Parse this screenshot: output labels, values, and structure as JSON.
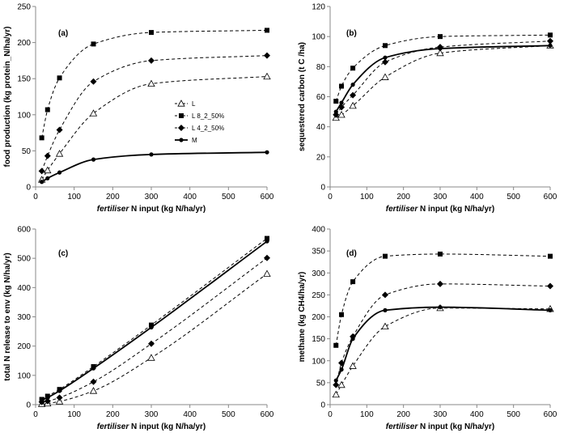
{
  "chart_data": [
    {
      "type": "line",
      "panel_label": "(a)",
      "xlabel_prefix": "fertiliser",
      "xlabel_rest": " N input (kg N/ha/yr)",
      "ylabel": "food production (kg protein_N/ha/yr)",
      "xlim": [
        0,
        600
      ],
      "ylim": [
        0,
        250
      ],
      "xticks": [
        0,
        100,
        200,
        300,
        400,
        500,
        600
      ],
      "yticks": [
        0,
        50,
        100,
        150,
        200,
        250
      ],
      "legend": {
        "position": "center-left",
        "entries": [
          "L",
          "L 8_2_50%",
          "L 4_2_50%",
          "M"
        ]
      },
      "series": [
        {
          "name": "L",
          "marker": "triangle-open",
          "line": "dashed",
          "x": [
            16,
            31,
            62,
            150,
            300,
            600
          ],
          "y": [
            10,
            23,
            46,
            102,
            143,
            153
          ]
        },
        {
          "name": "L 8_2_50%",
          "marker": "square",
          "line": "dashed",
          "x": [
            16,
            31,
            62,
            150,
            300,
            600
          ],
          "y": [
            68,
            107,
            151,
            198,
            214,
            217
          ]
        },
        {
          "name": "L 4_2_50%",
          "marker": "diamond",
          "line": "dashed",
          "x": [
            16,
            31,
            62,
            150,
            300,
            600
          ],
          "y": [
            22,
            43,
            79,
            146,
            175,
            182
          ]
        },
        {
          "name": "M",
          "marker": "circle",
          "line": "solid",
          "x": [
            16,
            31,
            62,
            150,
            300,
            600
          ],
          "y": [
            7,
            12,
            20,
            38,
            45,
            48
          ]
        }
      ]
    },
    {
      "type": "line",
      "panel_label": "(b)",
      "xlabel_prefix": "fertiliser",
      "xlabel_rest": " N input (kg N/ha/yr)",
      "ylabel": "sequestered carbon (t C /ha)",
      "xlim": [
        0,
        600
      ],
      "ylim": [
        0,
        120
      ],
      "xticks": [
        0,
        100,
        200,
        300,
        400,
        500,
        600
      ],
      "yticks": [
        0,
        20,
        40,
        60,
        80,
        100,
        120
      ],
      "series": [
        {
          "name": "L",
          "marker": "triangle-open",
          "line": "dashed",
          "x": [
            16,
            31,
            62,
            150,
            300,
            600
          ],
          "y": [
            46,
            48,
            54,
            73,
            89,
            94
          ]
        },
        {
          "name": "L 8_2_50%",
          "marker": "square",
          "line": "dashed",
          "x": [
            16,
            31,
            62,
            150,
            300,
            600
          ],
          "y": [
            57,
            67,
            79,
            94,
            100,
            101
          ]
        },
        {
          "name": "L 4_2_50%",
          "marker": "diamond",
          "line": "dashed",
          "x": [
            16,
            31,
            62,
            150,
            300,
            600
          ],
          "y": [
            48,
            53,
            61,
            83,
            93,
            97
          ]
        },
        {
          "name": "M",
          "marker": "circle",
          "line": "solid",
          "x": [
            16,
            31,
            62,
            150,
            300,
            600
          ],
          "y": [
            50,
            56,
            68,
            86,
            92,
            94
          ]
        }
      ]
    },
    {
      "type": "line",
      "panel_label": "(c)",
      "xlabel_prefix": "fertiliser",
      "xlabel_rest": " N input (kg N/ha/yr)",
      "ylabel": "total N release to env (kg N/ha/yr)",
      "xlim": [
        0,
        600
      ],
      "ylim": [
        0,
        600
      ],
      "xticks": [
        0,
        100,
        200,
        300,
        400,
        500,
        600
      ],
      "yticks": [
        0,
        100,
        200,
        300,
        400,
        500,
        600
      ],
      "series": [
        {
          "name": "L",
          "marker": "triangle-open",
          "line": "dashed",
          "x": [
            16,
            31,
            62,
            150,
            300,
            600
          ],
          "y": [
            2,
            4,
            11,
            47,
            160,
            447
          ]
        },
        {
          "name": "L 8_2_50%",
          "marker": "square",
          "line": "dashed",
          "x": [
            16,
            31,
            62,
            150,
            300,
            600
          ],
          "y": [
            18,
            29,
            52,
            130,
            272,
            568
          ]
        },
        {
          "name": "L 4_2_50%",
          "marker": "diamond",
          "line": "dashed",
          "x": [
            16,
            31,
            62,
            150,
            300,
            600
          ],
          "y": [
            9,
            12,
            24,
            78,
            208,
            501
          ]
        },
        {
          "name": "M",
          "marker": "circle",
          "line": "solid",
          "x": [
            16,
            31,
            62,
            150,
            300,
            600
          ],
          "y": [
            15,
            24,
            47,
            124,
            264,
            558
          ]
        }
      ]
    },
    {
      "type": "line",
      "panel_label": "(d)",
      "xlabel_prefix": "fertiliser",
      "xlabel_rest": " N input (kg N/ha/yr)",
      "ylabel": "methane (kg CH4/ha/yr)",
      "xlim": [
        0,
        600
      ],
      "ylim": [
        0,
        400
      ],
      "xticks": [
        0,
        100,
        200,
        300,
        400,
        500,
        600
      ],
      "yticks": [
        0,
        50,
        100,
        150,
        200,
        250,
        300,
        350,
        400
      ],
      "series": [
        {
          "name": "L",
          "marker": "triangle-open",
          "line": "dashed",
          "x": [
            16,
            31,
            62,
            150,
            300,
            600
          ],
          "y": [
            23,
            45,
            88,
            178,
            220,
            218
          ]
        },
        {
          "name": "L 8_2_50%",
          "marker": "square",
          "line": "dashed",
          "x": [
            16,
            31,
            62,
            150,
            300,
            600
          ],
          "y": [
            135,
            205,
            280,
            338,
            343,
            338
          ]
        },
        {
          "name": "L 4_2_50%",
          "marker": "diamond",
          "line": "dashed",
          "x": [
            16,
            31,
            62,
            150,
            300,
            600
          ],
          "y": [
            45,
            95,
            155,
            250,
            275,
            270
          ]
        },
        {
          "name": "M",
          "marker": "circle",
          "line": "solid",
          "x": [
            16,
            31,
            62,
            150,
            300,
            600
          ],
          "y": [
            55,
            80,
            150,
            215,
            222,
            215
          ]
        }
      ]
    }
  ]
}
